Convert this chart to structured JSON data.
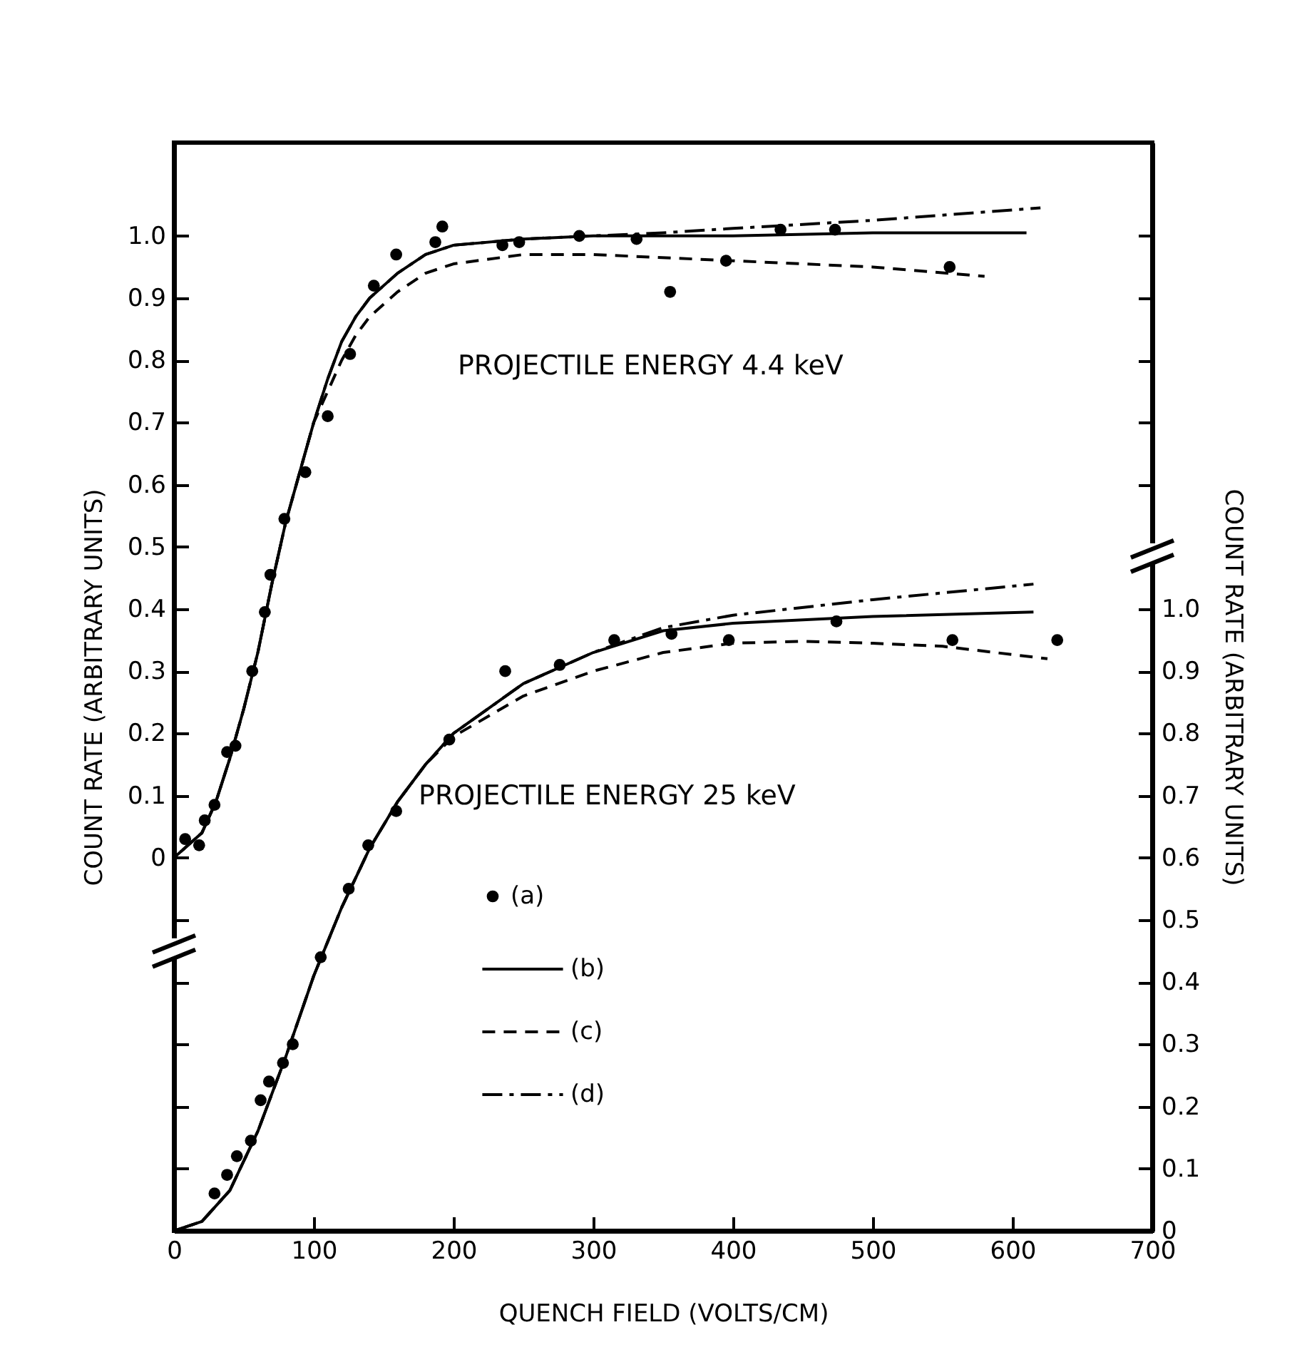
{
  "chart_data": {
    "type": "line",
    "xlabel": "QUENCH FIELD (VOLTS/CM)",
    "ylabel": "COUNT RATE (ARBITRARY UNITS)",
    "y2label": "COUNT RATE (ARBITRARY UNITS)",
    "xlim": [
      0,
      700
    ],
    "xticks": [
      0,
      100,
      200,
      300,
      400,
      500,
      600,
      700
    ],
    "ylim": [
      -0.6,
      1.15
    ],
    "yticks": [
      {
        "value": -0.5,
        "label": null
      },
      {
        "value": -0.4,
        "label": null
      },
      {
        "value": -0.3,
        "label": null
      },
      {
        "value": -0.2,
        "label": null
      },
      {
        "value": -0.1,
        "label": null
      },
      0,
      0.1,
      0.2,
      0.3,
      0.4,
      0.5,
      0.6,
      0.7,
      0.8,
      0.9,
      {
        "value": 1,
        "label": "1.0"
      }
    ],
    "y2lim": [
      0,
      1.75
    ],
    "y2ticks": [
      0,
      0.1,
      0.2,
      0.3,
      0.4,
      0.5,
      0.6,
      0.7,
      0.8,
      0.9,
      {
        "value": 1,
        "label": "1.0"
      },
      {
        "value": 1.2,
        "label": null
      },
      {
        "value": 1.3,
        "label": null
      },
      {
        "value": 1.4,
        "label": null
      },
      {
        "value": 1.5,
        "label": null
      },
      {
        "value": 1.6,
        "label": null
      }
    ],
    "grid": false,
    "legend": "bottom",
    "annotations": [
      "PROJECTILE ENERGY 4.4 keV",
      "PROJECTILE ENERGY 25 keV"
    ],
    "series": [
      {
        "name": "(a)",
        "type": "scatter",
        "marker": "circle",
        "color": "#000000",
        "x": [
          8,
          18,
          22,
          29,
          38,
          44,
          56,
          65,
          69,
          79,
          94,
          110,
          126,
          143,
          159,
          187,
          192,
          235,
          247,
          290,
          331,
          355,
          395,
          434,
          473,
          555
        ],
        "values": [
          0.03,
          0.02,
          0.06,
          0.085,
          0.17,
          0.18,
          0.3,
          0.395,
          0.455,
          0.545,
          0.62,
          0.71,
          0.81,
          0.92,
          0.97,
          0.99,
          1.015,
          0.985,
          0.99,
          1.0,
          0.995,
          0.91,
          0.96,
          1.01,
          1.01,
          0.95
        ]
      },
      {
        "name": "(b)",
        "line_style": "solid",
        "color": "#000000",
        "x": [
          0,
          10,
          20,
          30,
          40,
          50,
          60,
          70,
          80,
          90,
          100,
          110,
          120,
          130,
          140,
          160,
          180,
          200,
          250,
          300,
          400,
          500,
          610
        ],
        "values": [
          0.0,
          0.02,
          0.04,
          0.09,
          0.16,
          0.24,
          0.33,
          0.44,
          0.54,
          0.62,
          0.7,
          0.77,
          0.83,
          0.87,
          0.9,
          0.94,
          0.97,
          0.985,
          0.995,
          1.0,
          1.0,
          1.005,
          1.005
        ]
      },
      {
        "name": "(c)",
        "line_style": "dashed",
        "color": "#000000",
        "x": [
          0,
          10,
          20,
          30,
          40,
          50,
          60,
          70,
          80,
          90,
          100,
          110,
          120,
          130,
          140,
          160,
          180,
          200,
          250,
          300,
          400,
          500,
          580
        ],
        "values": [
          0.0,
          0.02,
          0.04,
          0.09,
          0.16,
          0.24,
          0.33,
          0.44,
          0.54,
          0.62,
          0.7,
          0.75,
          0.8,
          0.84,
          0.87,
          0.91,
          0.94,
          0.955,
          0.97,
          0.97,
          0.96,
          0.95,
          0.935
        ]
      },
      {
        "name": "(d)",
        "line_style": "dashdot",
        "color": "#000000",
        "x": [
          0,
          10,
          20,
          30,
          40,
          50,
          60,
          70,
          80,
          90,
          100,
          110,
          120,
          130,
          140,
          160,
          180,
          200,
          250,
          300,
          350,
          400,
          500,
          620
        ],
        "values": [
          0.0,
          0.02,
          0.04,
          0.09,
          0.16,
          0.24,
          0.33,
          0.44,
          0.54,
          0.62,
          0.7,
          0.77,
          0.83,
          0.87,
          0.9,
          0.94,
          0.97,
          0.985,
          0.995,
          1.0,
          1.005,
          1.012,
          1.025,
          1.045
        ]
      },
      {
        "type": "scatter",
        "axis": "y2",
        "marker": "circle",
        "color": "#000000",
        "x": [
          29,
          38,
          45,
          55,
          62,
          68,
          78,
          85,
          105,
          125,
          139,
          159,
          197,
          237,
          276,
          315,
          356,
          397,
          474,
          557,
          632
        ],
        "values": [
          0.06,
          0.09,
          0.12,
          0.145,
          0.21,
          0.24,
          0.27,
          0.3,
          0.44,
          0.55,
          0.62,
          0.675,
          0.79,
          0.9,
          0.91,
          0.95,
          0.96,
          0.95,
          0.98,
          0.95,
          0.95
        ]
      },
      {
        "axis": "y2",
        "line_style": "solid",
        "color": "#000000",
        "x": [
          0,
          20,
          40,
          60,
          80,
          100,
          120,
          140,
          160,
          180,
          200,
          250,
          300,
          350,
          400,
          500,
          615
        ],
        "values": [
          0.0,
          0.015,
          0.065,
          0.16,
          0.28,
          0.41,
          0.52,
          0.615,
          0.69,
          0.75,
          0.8,
          0.88,
          0.93,
          0.965,
          0.977,
          0.988,
          0.995
        ]
      },
      {
        "axis": "y2",
        "line_style": "dashed",
        "color": "#000000",
        "x": [
          0,
          20,
          40,
          60,
          80,
          100,
          120,
          140,
          160,
          180,
          200,
          250,
          300,
          350,
          400,
          450,
          500,
          550,
          625
        ],
        "values": [
          0.0,
          0.015,
          0.065,
          0.16,
          0.28,
          0.41,
          0.52,
          0.615,
          0.69,
          0.75,
          0.795,
          0.86,
          0.9,
          0.93,
          0.945,
          0.948,
          0.945,
          0.94,
          0.92
        ]
      },
      {
        "axis": "y2",
        "line_style": "dashdot",
        "color": "#000000",
        "x": [
          0,
          20,
          40,
          60,
          80,
          100,
          120,
          140,
          160,
          180,
          200,
          250,
          300,
          350,
          400,
          500,
          615
        ],
        "values": [
          0.0,
          0.015,
          0.065,
          0.16,
          0.28,
          0.41,
          0.52,
          0.615,
          0.69,
          0.75,
          0.8,
          0.88,
          0.93,
          0.97,
          0.99,
          1.015,
          1.04
        ]
      }
    ]
  }
}
